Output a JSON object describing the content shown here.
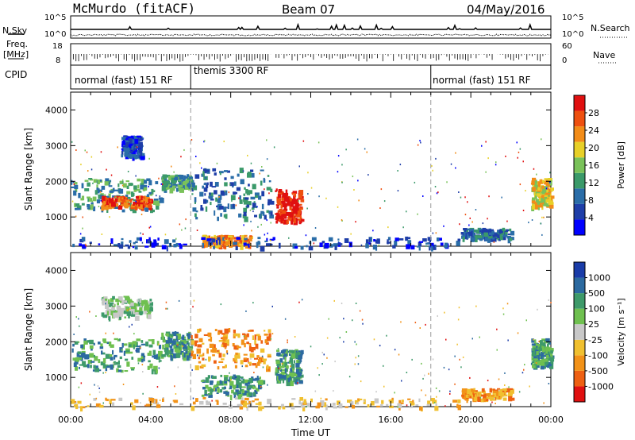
{
  "header": {
    "station": "McMurdo (fitACF)",
    "beam": "Beam 07",
    "date": "04/May/2016"
  },
  "noise_panel": {
    "left_label": "N.Sky",
    "right_label": "N.Search",
    "ticks_left": [
      "10^5",
      "10^0"
    ],
    "ticks_right": [
      "10^5",
      "10^0"
    ]
  },
  "freq_panel": {
    "left_label_1": "Freq.",
    "left_label_2": "[MHz]",
    "right_label": "Nave",
    "ticks_left": [
      "18",
      "8"
    ],
    "ticks_right": [
      "60",
      "0"
    ]
  },
  "cpid": {
    "label": "CPID",
    "segments": [
      {
        "text": "normal (fast) 151 RF",
        "start_hour": 0,
        "end_hour": 6
      },
      {
        "text": "themis 3300 RF",
        "start_hour": 6,
        "end_hour": 18
      },
      {
        "text": "normal (fast) 151 RF",
        "start_hour": 18,
        "end_hour": 24
      }
    ]
  },
  "colors": {
    "power_scale": [
      "#0000ff",
      "#1e3ea8",
      "#2a6da8",
      "#3b9a6a",
      "#7ac25a",
      "#e8d028",
      "#f28c18",
      "#ee5010",
      "#e01010"
    ],
    "velocity_scale": [
      "#e01010",
      "#ee6012",
      "#f29218",
      "#f0c030",
      "#c8c8c8",
      "#6fc050",
      "#3e9a6a",
      "#2c6aa0",
      "#1a3ca8"
    ]
  },
  "chart_data": [
    {
      "type": "heatmap",
      "panel": "power",
      "ylabel": "Slant Range [km]",
      "colorbar_label": "Power [dB]",
      "colorbar_ticks": [
        "28",
        "24",
        "20",
        "16",
        "12",
        "8",
        "4"
      ],
      "xlim": [
        0,
        24
      ],
      "ylim": [
        180,
        4500
      ],
      "yticks": [
        "1000",
        "2000",
        "3000",
        "4000"
      ],
      "y_tick_values": [
        1000,
        2000,
        3000,
        4000
      ],
      "regions": [
        {
          "t0": 0.0,
          "t1": 4.5,
          "r0": 1200,
          "r1": 2100,
          "level": 3
        },
        {
          "t0": 1.5,
          "t1": 4.0,
          "r0": 1300,
          "r1": 1600,
          "level": 7
        },
        {
          "t0": 2.5,
          "t1": 3.5,
          "r0": 2700,
          "r1": 3300,
          "level": 1
        },
        {
          "t0": 4.5,
          "t1": 6.0,
          "r0": 1800,
          "r1": 2200,
          "level": 3
        },
        {
          "t0": 6.0,
          "t1": 10.0,
          "r0": 1000,
          "r1": 2400,
          "level": 2
        },
        {
          "t0": 6.5,
          "t1": 9.0,
          "r0": 200,
          "r1": 500,
          "level": 6
        },
        {
          "t0": 10.2,
          "t1": 11.5,
          "r0": 900,
          "r1": 1800,
          "level": 8
        },
        {
          "t0": 0.0,
          "t1": 19.5,
          "r0": 180,
          "r1": 450,
          "level": 1
        },
        {
          "t0": 19.5,
          "t1": 22.0,
          "r0": 400,
          "r1": 700,
          "level": 2
        },
        {
          "t0": 23.0,
          "t1": 24.0,
          "r0": 1300,
          "r1": 2100,
          "level": 5
        }
      ]
    },
    {
      "type": "heatmap",
      "panel": "velocity",
      "ylabel": "Slant Range [km]",
      "xlabel": "Time UT",
      "colorbar_label": "Velocity [m s⁻¹]",
      "colorbar_ticks": [
        "1000",
        "500",
        "100",
        "25",
        "-25",
        "-100",
        "-500",
        "-1000"
      ],
      "xlim": [
        0,
        24
      ],
      "ylim": [
        180,
        4500
      ],
      "yticks": [
        "1000",
        "2000",
        "3000",
        "4000"
      ],
      "y_tick_values": [
        1000,
        2000,
        3000,
        4000
      ],
      "xticks": [
        "00:00",
        "04:00",
        "08:00",
        "12:00",
        "16:00",
        "20:00",
        "00:00"
      ],
      "regions": [
        {
          "t0": 0.0,
          "t1": 4.5,
          "r0": 1200,
          "r1": 2100,
          "level": 6
        },
        {
          "t0": 1.5,
          "t1": 4.0,
          "r0": 2700,
          "r1": 3300,
          "level": 5
        },
        {
          "t0": 4.5,
          "t1": 6.0,
          "r0": 1600,
          "r1": 2300,
          "level": 6
        },
        {
          "t0": 6.0,
          "t1": 10.0,
          "r0": 1300,
          "r1": 2400,
          "level": 2
        },
        {
          "t0": 6.5,
          "t1": 9.5,
          "r0": 500,
          "r1": 1100,
          "level": 6
        },
        {
          "t0": 10.2,
          "t1": 11.5,
          "r0": 900,
          "r1": 1800,
          "level": 6
        },
        {
          "t0": 0.0,
          "t1": 19.5,
          "r0": 180,
          "r1": 450,
          "level": 3
        },
        {
          "t0": 19.5,
          "t1": 22.0,
          "r0": 400,
          "r1": 700,
          "level": 2
        },
        {
          "t0": 23.0,
          "t1": 24.0,
          "r0": 1300,
          "r1": 2100,
          "level": 6
        }
      ]
    }
  ]
}
